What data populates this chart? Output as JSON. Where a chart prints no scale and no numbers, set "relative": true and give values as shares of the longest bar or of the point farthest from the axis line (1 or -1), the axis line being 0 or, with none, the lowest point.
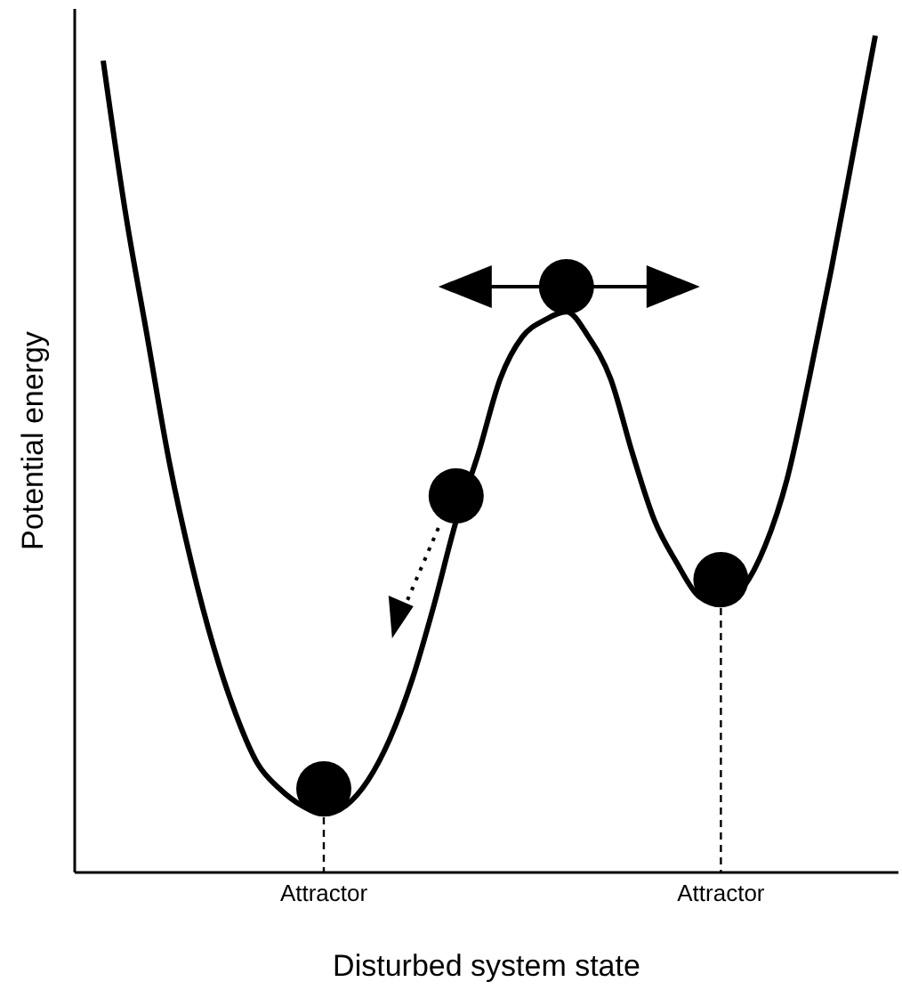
{
  "chart_data": {
    "type": "line",
    "relative": true,
    "xlabel": "Disturbed system state",
    "ylabel": "Potential energy",
    "categories": [
      null,
      null,
      null,
      null,
      null,
      null,
      null,
      null,
      null,
      null,
      "Attractor",
      null,
      null,
      null,
      null,
      null,
      null,
      null,
      null,
      null,
      null,
      null,
      null,
      null,
      null,
      null,
      null,
      null,
      "Attractor",
      null,
      null,
      null,
      null,
      null,
      null,
      null
    ],
    "series": [
      {
        "color": "#000000",
        "line_style": "solid",
        "marker": "none",
        "values": [
          0.97,
          0.79,
          0.64,
          0.49,
          0.37,
          0.27,
          0.19,
          0.13,
          0.1,
          0.08,
          0.07,
          0.08,
          0.11,
          0.16,
          0.23,
          0.32,
          0.42,
          0.5,
          0.59,
          0.64,
          0.66,
          0.67,
          0.64,
          0.59,
          0.5,
          0.42,
          0.37,
          0.33,
          0.32,
          0.34,
          0.39,
          0.47,
          0.59,
          0.72,
          0.86,
          1.0
        ]
      },
      {
        "type": "scatter",
        "color": "#000000",
        "marker": "circle",
        "values": [
          null,
          null,
          null,
          null,
          null,
          null,
          null,
          null,
          null,
          null,
          0.1,
          null,
          null,
          null,
          null,
          null,
          0.45,
          null,
          null,
          null,
          null,
          0.7,
          null,
          null,
          null,
          null,
          null,
          null,
          0.35,
          null,
          null,
          null,
          null,
          null,
          null,
          null
        ]
      }
    ]
  }
}
